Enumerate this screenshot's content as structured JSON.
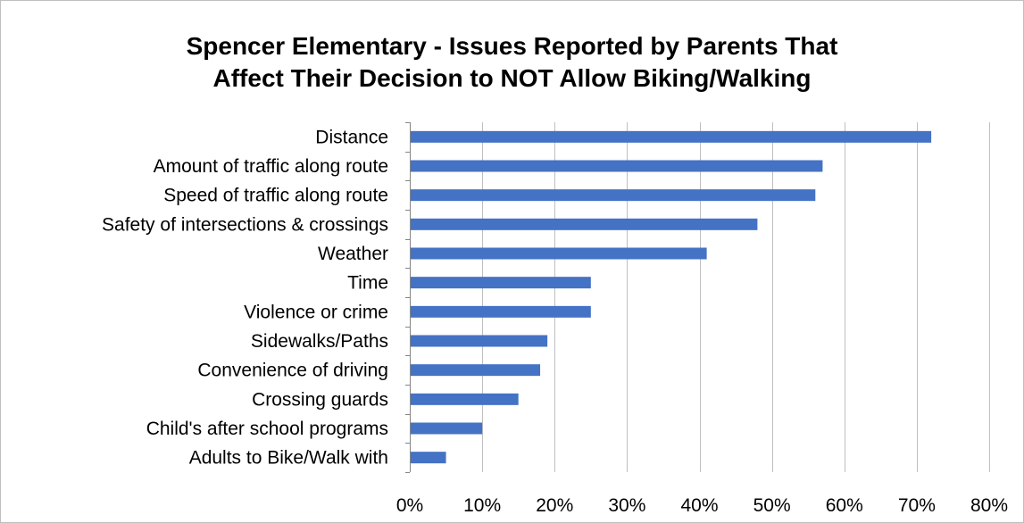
{
  "chart_data": {
    "type": "bar",
    "orientation": "horizontal",
    "title_lines": [
      "Spencer Elementary - Issues Reported by Parents That",
      "Affect Their Decision to NOT Allow Biking/Walking"
    ],
    "categories": [
      "Distance",
      "Amount of traffic along route",
      "Speed of traffic along route",
      "Safety of intersections & crossings",
      "Weather",
      "Time",
      "Violence or crime",
      "Sidewalks/Paths",
      "Convenience of driving",
      "Crossing guards",
      "Child's after school programs",
      "Adults to Bike/Walk with"
    ],
    "values": [
      0.72,
      0.57,
      0.56,
      0.48,
      0.41,
      0.25,
      0.25,
      0.19,
      0.18,
      0.15,
      0.1,
      0.05
    ],
    "xlim": [
      0,
      0.8
    ],
    "x_ticks": [
      0,
      0.1,
      0.2,
      0.3,
      0.4,
      0.5,
      0.6,
      0.7,
      0.8
    ],
    "x_tick_labels": [
      "0%",
      "10%",
      "20%",
      "30%",
      "40%",
      "50%",
      "60%",
      "70%",
      "80%"
    ],
    "grid": "vertical",
    "legend": "none",
    "bar_color": "#4472c4",
    "grid_color": "#bfbfbf"
  }
}
